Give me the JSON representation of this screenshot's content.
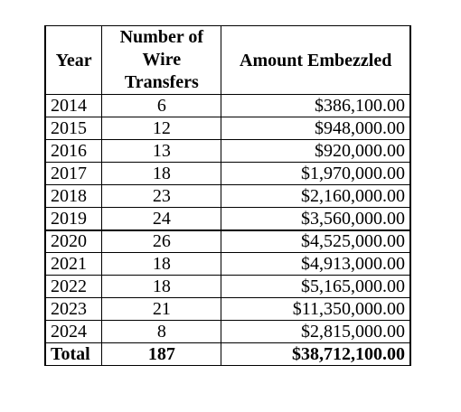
{
  "headers": {
    "year": "Year",
    "count_line1": "Number of",
    "count_line2": "Wire",
    "count_line3": "Transfers",
    "amount": "Amount Embezzled"
  },
  "rows": [
    {
      "year": "2014",
      "count": "6",
      "amount": "$386,100.00"
    },
    {
      "year": "2015",
      "count": "12",
      "amount": "$948,000.00"
    },
    {
      "year": "2016",
      "count": "13",
      "amount": "$920,000.00"
    },
    {
      "year": "2017",
      "count": "18",
      "amount": "$1,970,000.00"
    },
    {
      "year": "2018",
      "count": "23",
      "amount": "$2,160,000.00"
    },
    {
      "year": "2019",
      "count": "24",
      "amount": "$3,560,000.00"
    },
    {
      "year": "2020",
      "count": "26",
      "amount": "$4,525,000.00"
    },
    {
      "year": "2021",
      "count": "18",
      "amount": "$4,913,000.00"
    },
    {
      "year": "2022",
      "count": "18",
      "amount": "$5,165,000.00"
    },
    {
      "year": "2023",
      "count": "21",
      "amount": "$11,350,000.00"
    },
    {
      "year": "2024",
      "count": "8",
      "amount": "$2,815,000.00"
    }
  ],
  "total": {
    "label": "Total",
    "count": "187",
    "amount": "$38,712,100.00"
  }
}
